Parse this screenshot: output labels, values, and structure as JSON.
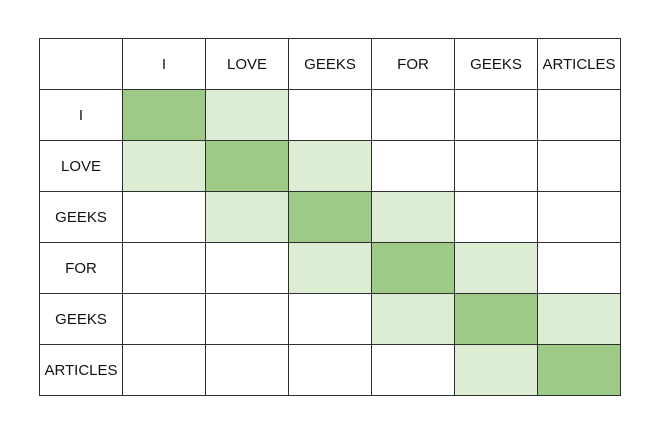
{
  "matrix": {
    "corner_label": "",
    "col_labels": [
      "I",
      "LOVE",
      "GEEKS",
      "FOR",
      "GEEKS",
      "ARTICLES"
    ],
    "row_labels": [
      "I",
      "LOVE",
      "GEEKS",
      "FOR",
      "GEEKS",
      "ARTICLES"
    ]
  },
  "colors": {
    "diagonal_green": "#9dcb87",
    "adjacent_green": "#dcedd3",
    "border": "#2e2e2e",
    "text": "#111111",
    "background": "#ffffff"
  },
  "chart_data": {
    "type": "heatmap",
    "title": "",
    "x_labels": [
      "I",
      "LOVE",
      "GEEKS",
      "FOR",
      "GEEKS",
      "ARTICLES"
    ],
    "y_labels": [
      "I",
      "LOVE",
      "GEEKS",
      "FOR",
      "GEEKS",
      "ARTICLES"
    ],
    "values": [
      [
        2,
        1,
        0,
        0,
        0,
        0
      ],
      [
        1,
        2,
        1,
        0,
        0,
        0
      ],
      [
        0,
        1,
        2,
        1,
        0,
        0
      ],
      [
        0,
        0,
        1,
        2,
        1,
        0
      ],
      [
        0,
        0,
        0,
        1,
        2,
        1
      ],
      [
        0,
        0,
        0,
        0,
        1,
        2
      ]
    ],
    "value_legend": {
      "2": "diagonal cell (dark green)",
      "1": "adjacent off-diagonal cell (light green)",
      "0": "empty cell (white)"
    },
    "grid": true,
    "legend_position": "none"
  }
}
